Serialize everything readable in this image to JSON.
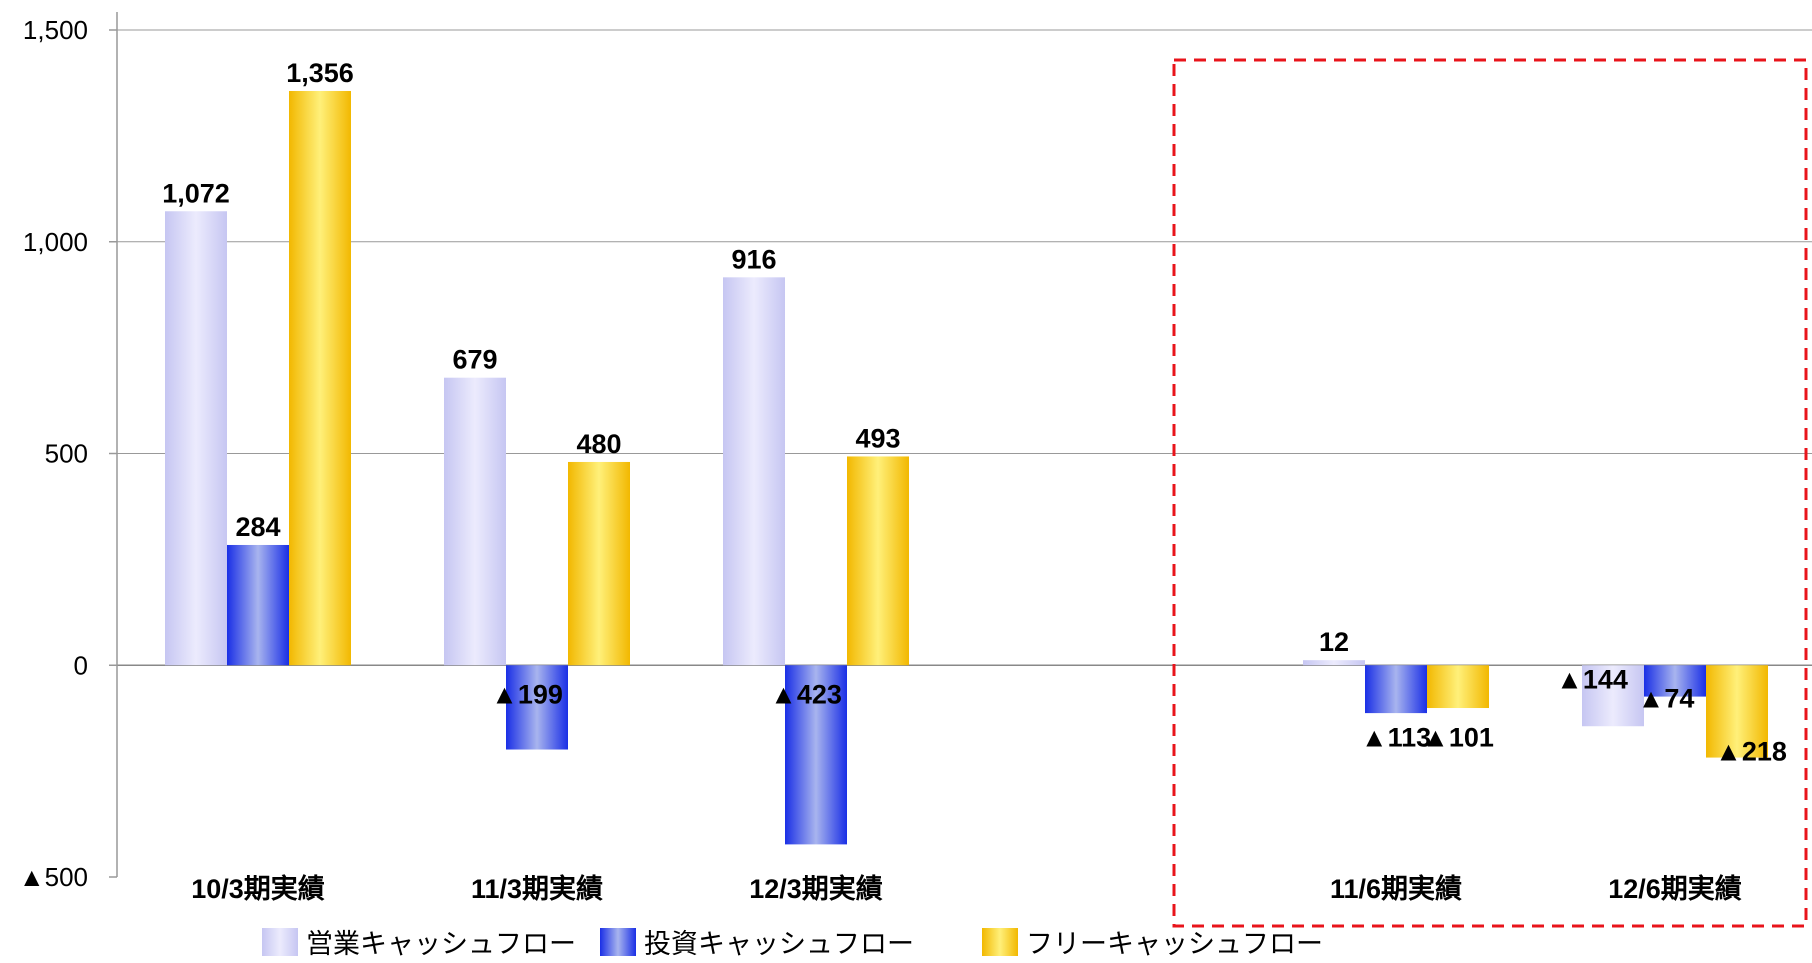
{
  "chart_data": {
    "type": "bar",
    "title": "",
    "xlabel": "",
    "ylabel": "",
    "ylim": [
      -500,
      1500
    ],
    "yticks": [
      {
        "value": 1500,
        "label": "1,500"
      },
      {
        "value": 1000,
        "label": "1,000"
      },
      {
        "value": 500,
        "label": "500"
      },
      {
        "value": 0,
        "label": "0"
      },
      {
        "value": -500,
        "label": "▲500"
      }
    ],
    "grid": true,
    "legend_position": "bottom",
    "categories": [
      "10/3期実績",
      "11/3期実績",
      "12/3期実績",
      "",
      "11/6期実績",
      "12/6期実績"
    ],
    "series": [
      {
        "name": "営業キャッシュフロー",
        "color": "#d4d4f7",
        "values": [
          1072,
          679,
          916,
          null,
          12,
          -144
        ],
        "labels": [
          "1,072",
          "679",
          "916",
          "",
          "12",
          "▲144"
        ]
      },
      {
        "name": "投資キャッシュフロー",
        "color": "#2b3be0",
        "values": [
          284,
          -199,
          -423,
          null,
          -113,
          -74
        ],
        "labels": [
          "284",
          "▲199",
          "▲423",
          "",
          "▲113",
          "▲74"
        ]
      },
      {
        "name": "フリーキャッシュフロー",
        "color": "#f5c400",
        "values": [
          1356,
          480,
          493,
          null,
          -101,
          -218
        ],
        "labels": [
          "1,356",
          "480",
          "493",
          "",
          "▲101",
          "▲218"
        ]
      }
    ],
    "highlight_box": {
      "categories": [
        "11/6期実績",
        "12/6期実績"
      ],
      "color": "#e8141b",
      "style": "dashed"
    }
  }
}
